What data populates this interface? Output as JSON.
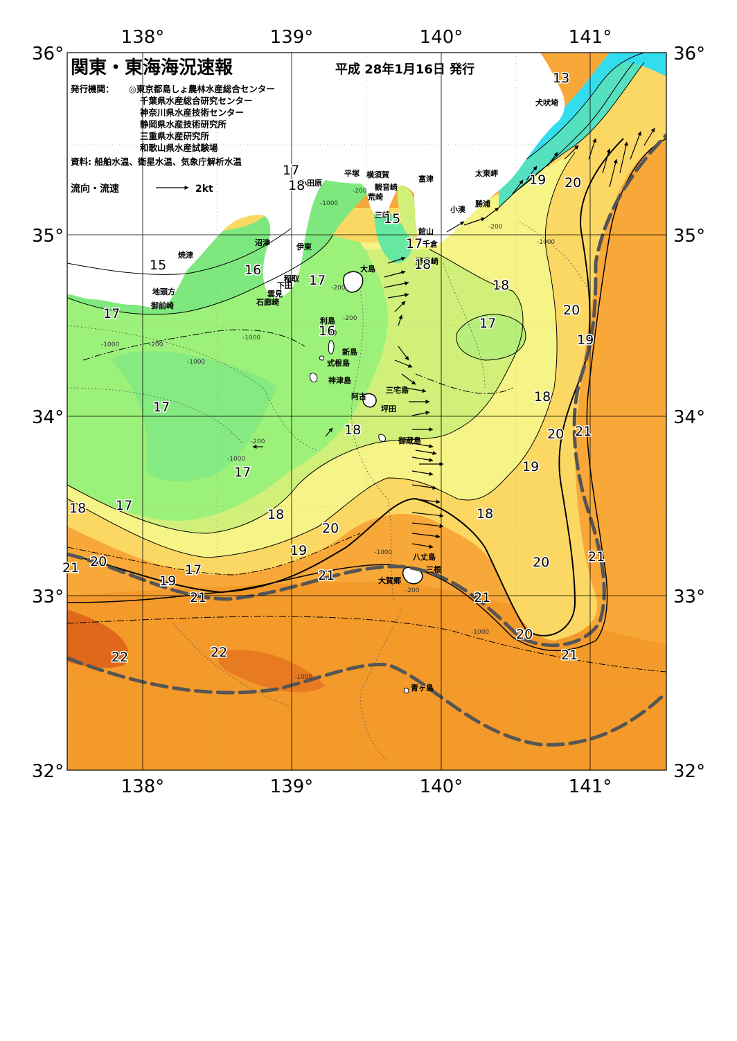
{
  "header": {
    "title": "関東・東海海況速報",
    "issue_date": "平成 28年1月16日 発行"
  },
  "issuers": {
    "label": "発行機関：",
    "lines": [
      "◎東京都島しょ農林水産総合センター",
      "千葉県水産総合研究センター",
      "神奈川県水産技術センター",
      "静岡県水産技術研究所",
      "三重県水産研究所",
      "和歌山県水産試験場"
    ]
  },
  "sources": "資料: 船舶水温、衛星水温、気象庁解析水温",
  "legend": {
    "label": "流向・流速",
    "arrow_label": "2kt"
  },
  "axes": {
    "lon_ticks": [
      "138°",
      "139°",
      "140°",
      "141°"
    ],
    "lat_ticks": [
      "36°",
      "35°",
      "34°",
      "33°",
      "32°"
    ]
  },
  "place_names": {
    "inubozaki": "犬吠埼",
    "taitomisaki": "太東岬",
    "katsuura": "勝浦",
    "kominato": "小湊",
    "tateyama": "館山",
    "chikura": "千倉",
    "nojimazaki": "野島崎",
    "futtsu": "富津",
    "yokosuka": "横須賀",
    "kannonzaki": "観音崎",
    "arasaki": "荒崎",
    "misaki": "三崎",
    "hiratsuka": "平塚",
    "odawara": "小田原",
    "numazu": "沼津",
    "ito": "伊東",
    "inatori": "稲取",
    "shimoda": "下田",
    "kumomi": "雲見",
    "irozaki": "石廊崎",
    "yaizu": "焼津",
    "jitougata": "地頭方",
    "omaezaki": "御前崎",
    "oshima": "大島",
    "toshima": "利島",
    "niijima": "新島",
    "shikinejima": "式根島",
    "kozushima": "神津島",
    "miyake": "三宅島",
    "ako": "阿古",
    "tsubota": "坪田",
    "mikurajima": "御蔵島",
    "hachijojima": "八丈島",
    "mitsune": "三根",
    "okago": "大賀郷",
    "aogashima": "青ヶ島"
  },
  "temperature_labels": [
    "13",
    "17",
    "18",
    "15",
    "17",
    "18",
    "19",
    "20",
    "15",
    "16",
    "17",
    "18",
    "17",
    "16",
    "20",
    "17",
    "19",
    "17",
    "18",
    "17",
    "18",
    "20",
    "21",
    "17",
    "19",
    "18",
    "17",
    "18",
    "20",
    "18",
    "19",
    "21",
    "20",
    "21",
    "20",
    "21",
    "18",
    "19",
    "21",
    "21",
    "20",
    "21",
    "22",
    "22"
  ],
  "depth_labels": [
    "-200",
    "-1000",
    "-200",
    "-1000",
    "-200",
    "-1000",
    "-200",
    "-1000",
    "-1000",
    "-200",
    "-1000",
    "-200",
    "-1000",
    "-1000",
    "-1000",
    "-200"
  ],
  "colors": {
    "land": "#ffffff",
    "temp_13": "#33ddee",
    "temp_14": "#55e0c0",
    "temp_15": "#66e8a0",
    "temp_16": "#7ee87e",
    "temp_17": "#9cf17a",
    "temp_18": "#d0f07a",
    "temp_19": "#f7f487",
    "temp_20": "#fbd864",
    "temp_21": "#f8a838",
    "temp_22": "#f08a18",
    "temp_23": "#e0681a",
    "kuroshio_axis": "#555555"
  }
}
